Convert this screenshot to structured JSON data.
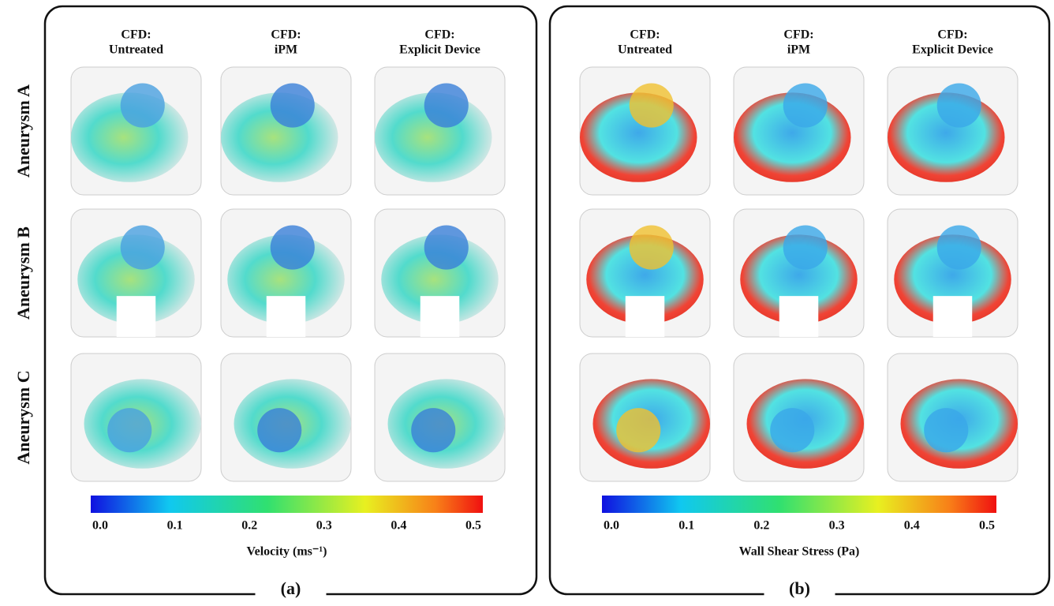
{
  "row_labels": [
    "Aneurysm A",
    "Aneurysm B",
    "Aneurysm C"
  ],
  "panels": [
    {
      "label": "(a)",
      "columns": [
        {
          "line1": "CFD:",
          "line2": "Untreated"
        },
        {
          "line1": "CFD:",
          "line2": "iPM"
        },
        {
          "line1": "CFD:",
          "line2": "Explicit Device"
        }
      ],
      "colorbar": {
        "ticks": [
          "0.0",
          "0.1",
          "0.2",
          "0.3",
          "0.4",
          "0.5"
        ],
        "label": "Velocity (ms⁻¹)"
      }
    },
    {
      "label": "(b)",
      "columns": [
        {
          "line1": "CFD:",
          "line2": "Untreated"
        },
        {
          "line1": "CFD:",
          "line2": "iPM"
        },
        {
          "line1": "CFD:",
          "line2": "Explicit Device"
        }
      ],
      "colorbar": {
        "ticks": [
          "0.0",
          "0.1",
          "0.2",
          "0.3",
          "0.4",
          "0.5"
        ],
        "label": "Wall Shear Stress (Pa)"
      }
    }
  ]
}
